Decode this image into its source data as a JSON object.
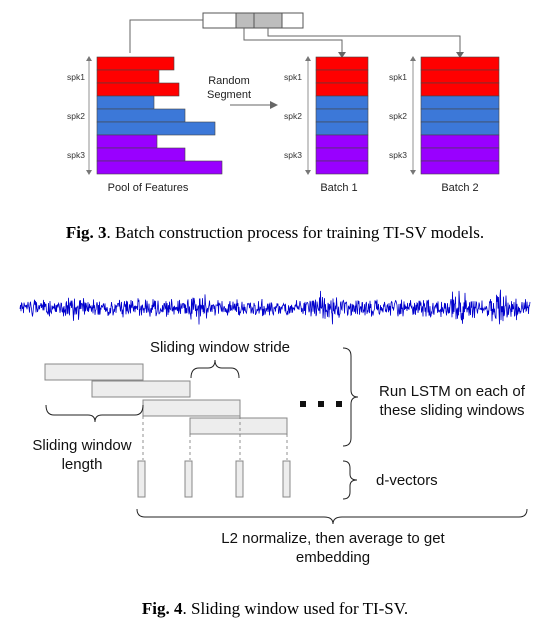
{
  "fig3": {
    "pool_label": "Pool of Features",
    "batch1_label": "Batch 1",
    "batch2_label": "Batch 2",
    "random_line1": "Random",
    "random_line2": "Segment",
    "speakers": [
      "spk1",
      "spk2",
      "spk3"
    ],
    "caption_bold": "Fig. 3",
    "caption_text": ". Batch construction process for training TI-SV models."
  },
  "fig4": {
    "stride_label": "Sliding window stride",
    "length_line1": "Sliding window",
    "length_line2": "length",
    "run_line1": "Run LSTM on each of",
    "run_line2": "these sliding windows",
    "ellipsis": "■ ■ ■",
    "dvectors_label": "d-vectors",
    "l2_line1": "L2 normalize, then average to get",
    "l2_line2": "embedding",
    "caption_bold": "Fig. 4",
    "caption_text": ". Sliding window used for TI-SV."
  },
  "colors": {
    "spk1": "#ff0000",
    "spk2": "#3c78d8",
    "spk3": "#9900ff",
    "waveform": "#0000cc",
    "window_fill": "#ededed",
    "window_stroke": "#888888"
  }
}
